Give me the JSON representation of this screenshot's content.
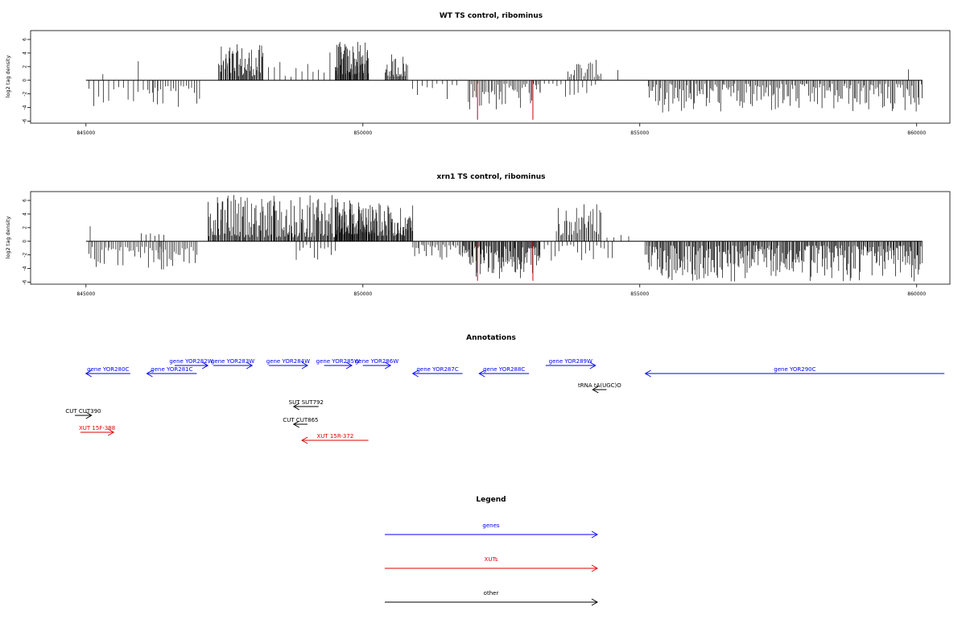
{
  "chart_data": [
    {
      "type": "bar",
      "title": "WT TS control, ribominus",
      "ylabel": "log2 tag density",
      "xlim": [
        844000,
        860600
      ],
      "ylim": [
        -6.3,
        7.3
      ],
      "x_ticks": [
        845000,
        850000,
        855000,
        860000
      ],
      "y_ticks": [
        -6,
        -4,
        -2,
        0,
        2,
        4,
        6
      ],
      "colors": {
        "bars": "#000000",
        "highlight": "#cc0000"
      },
      "highlights": [
        {
          "x": 852070,
          "y": -5.8
        },
        {
          "x": 853070,
          "y": -5.8
        }
      ],
      "segments": [
        {
          "x0": 845050,
          "x1": 846300,
          "count": 15,
          "sign": -1,
          "min": 0.8,
          "max": 3.8
        },
        {
          "x0": 845300,
          "x1": 845320,
          "count": 1,
          "sign": 1,
          "min": 0.9,
          "max": 0.9
        },
        {
          "x0": 845950,
          "x1": 845970,
          "count": 1,
          "sign": 1,
          "min": 2.8,
          "max": 2.8
        },
        {
          "x0": 846150,
          "x1": 847050,
          "count": 20,
          "sign": -1,
          "min": 0.8,
          "max": 4.2
        },
        {
          "x0": 847400,
          "x1": 848200,
          "count": 55,
          "sign": 1,
          "min": 0.6,
          "max": 5.3
        },
        {
          "x0": 848300,
          "x1": 849400,
          "count": 12,
          "sign": 1,
          "min": 0.5,
          "max": 4.5
        },
        {
          "x0": 849500,
          "x1": 850100,
          "count": 60,
          "sign": 1,
          "min": 0.8,
          "max": 5.7
        },
        {
          "x0": 850400,
          "x1": 850800,
          "count": 28,
          "sign": 1,
          "min": 0.5,
          "max": 3.9
        },
        {
          "x0": 850900,
          "x1": 851700,
          "count": 10,
          "sign": -1,
          "min": 0.5,
          "max": 3.0
        },
        {
          "x0": 851900,
          "x1": 853200,
          "count": 45,
          "sign": -1,
          "min": 0.5,
          "max": 4.5
        },
        {
          "x0": 853200,
          "x1": 854200,
          "count": 14,
          "sign": -1,
          "min": 0.5,
          "max": 2.5
        },
        {
          "x0": 853700,
          "x1": 854300,
          "count": 20,
          "sign": 1,
          "min": 0.5,
          "max": 3.0
        },
        {
          "x0": 854600,
          "x1": 854620,
          "count": 1,
          "sign": 1,
          "min": 1.5,
          "max": 1.5
        },
        {
          "x0": 855150,
          "x1": 860100,
          "count": 190,
          "sign": -1,
          "min": 0.5,
          "max": 4.8
        },
        {
          "x0": 859850,
          "x1": 859870,
          "count": 1,
          "sign": 1,
          "min": 1.6,
          "max": 1.6
        }
      ]
    },
    {
      "type": "bar",
      "title": "xrn1 TS control, ribominus",
      "ylabel": "log2 tag density",
      "xlim": [
        844000,
        860600
      ],
      "ylim": [
        -6.3,
        7.3
      ],
      "x_ticks": [
        845000,
        850000,
        855000,
        860000
      ],
      "y_ticks": [
        -6,
        -4,
        -2,
        0,
        2,
        4,
        6
      ],
      "colors": {
        "bars": "#000000",
        "highlight": "#cc0000"
      },
      "highlights": [
        {
          "x": 852070,
          "y": -5.8
        },
        {
          "x": 853070,
          "y": -5.8
        }
      ],
      "segments": [
        {
          "x0": 845050,
          "x1": 846400,
          "count": 40,
          "sign": -1,
          "min": 0.8,
          "max": 4.5
        },
        {
          "x0": 845080,
          "x1": 845100,
          "count": 1,
          "sign": 1,
          "min": 2.2,
          "max": 2.2
        },
        {
          "x0": 846000,
          "x1": 846400,
          "count": 6,
          "sign": 1,
          "min": 0.8,
          "max": 1.8
        },
        {
          "x0": 846300,
          "x1": 847000,
          "count": 22,
          "sign": -1,
          "min": 0.8,
          "max": 4.2
        },
        {
          "x0": 847200,
          "x1": 849500,
          "count": 150,
          "sign": 1,
          "min": 0.6,
          "max": 6.9
        },
        {
          "x0": 848800,
          "x1": 849500,
          "count": 12,
          "sign": -1,
          "min": 0.5,
          "max": 3.0
        },
        {
          "x0": 849500,
          "x1": 850200,
          "count": 90,
          "sign": 1,
          "min": 1.0,
          "max": 6.3
        },
        {
          "x0": 850200,
          "x1": 850900,
          "count": 60,
          "sign": 1,
          "min": 0.8,
          "max": 5.6
        },
        {
          "x0": 850900,
          "x1": 851800,
          "count": 30,
          "sign": -1,
          "min": 0.5,
          "max": 3.0
        },
        {
          "x0": 851800,
          "x1": 853200,
          "count": 95,
          "sign": -1,
          "min": 0.6,
          "max": 5.5
        },
        {
          "x0": 853200,
          "x1": 854500,
          "count": 20,
          "sign": -1,
          "min": 0.5,
          "max": 3.0
        },
        {
          "x0": 853500,
          "x1": 854300,
          "count": 35,
          "sign": 1,
          "min": 0.8,
          "max": 5.5
        },
        {
          "x0": 854400,
          "x1": 854800,
          "count": 4,
          "sign": 1,
          "min": 0.5,
          "max": 1.2
        },
        {
          "x0": 855100,
          "x1": 860100,
          "count": 300,
          "sign": -1,
          "min": 0.6,
          "max": 5.9
        }
      ]
    },
    {
      "type": "annotation_track",
      "title": "Annotations",
      "xlim": [
        844000,
        860600
      ],
      "features": [
        {
          "label": "gene YOR280C",
          "x_start": 845800,
          "x_end": 845000,
          "row": 1,
          "color": "#0000ff"
        },
        {
          "label": "gene YOR281C",
          "x_start": 847000,
          "x_end": 846100,
          "row": 1,
          "color": "#0000ff"
        },
        {
          "label": "gene YOR282W",
          "x_start": 846600,
          "x_end": 847200,
          "row": 0,
          "color": "#0000ff"
        },
        {
          "label": "gene YOR283W",
          "x_start": 847300,
          "x_end": 848000,
          "row": 0,
          "color": "#0000ff"
        },
        {
          "label": "gene YOR284W",
          "x_start": 848300,
          "x_end": 849000,
          "row": 0,
          "color": "#0000ff"
        },
        {
          "label": "gene YOR285W",
          "x_start": 849300,
          "x_end": 849800,
          "row": 0,
          "color": "#0000ff"
        },
        {
          "label": "gene YOR286W",
          "x_start": 850000,
          "x_end": 850500,
          "row": 0,
          "color": "#0000ff"
        },
        {
          "label": "gene YOR287C",
          "x_start": 851800,
          "x_end": 850900,
          "row": 1,
          "color": "#0000ff"
        },
        {
          "label": "gene YOR288C",
          "x_start": 853000,
          "x_end": 852100,
          "row": 1,
          "color": "#0000ff"
        },
        {
          "label": "gene YOR289W",
          "x_start": 853300,
          "x_end": 854200,
          "row": 0,
          "color": "#0000ff"
        },
        {
          "label": "gene YOR290C",
          "x_start": 860500,
          "x_end": 855100,
          "row": 1,
          "color": "#0000ff"
        },
        {
          "label": "tRNA tA(UGC)O",
          "x_start": 854400,
          "x_end": 854150,
          "row": 2,
          "color": "#000000"
        },
        {
          "label": "SUT SUT792",
          "x_start": 849200,
          "x_end": 848750,
          "row": 3,
          "color": "#000000"
        },
        {
          "label": "CUT CUT390",
          "x_start": 844800,
          "x_end": 845100,
          "row": 4,
          "color": "#000000"
        },
        {
          "label": "CUT CUT865",
          "x_start": 849000,
          "x_end": 848750,
          "row": 5,
          "color": "#000000"
        },
        {
          "label": "XUT 15F-388",
          "x_start": 844900,
          "x_end": 845500,
          "row": 6,
          "color": "#dd0000"
        },
        {
          "label": "XUT 15R-372",
          "x_start": 850100,
          "x_end": 848900,
          "row": 7,
          "color": "#dd0000"
        }
      ]
    },
    {
      "type": "legend",
      "title": "Legend",
      "entries": [
        {
          "label": "genes",
          "color": "#0000ff"
        },
        {
          "label": "XUTs",
          "color": "#dd0000"
        },
        {
          "label": "other",
          "color": "#000000"
        }
      ]
    }
  ]
}
